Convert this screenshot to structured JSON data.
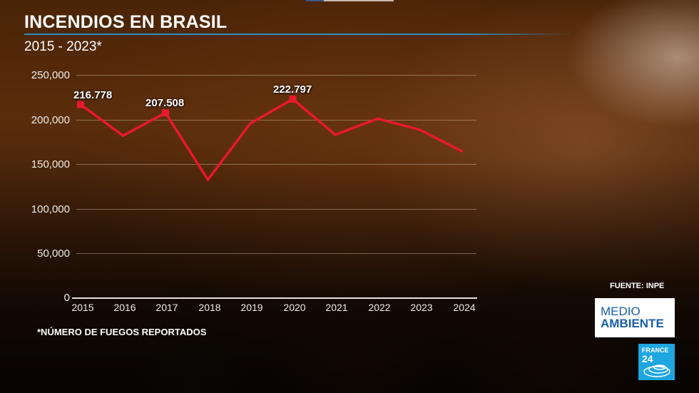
{
  "header": {
    "title": "INCENDIOS EN BRASIL",
    "subtitle": "2015 - 2023*"
  },
  "footer": {
    "note": "*NÚMERO DE FUEGOS REPORTADOS",
    "source": "FUENTE: INPE"
  },
  "branding": {
    "section_logo_line1": "MEDIO",
    "section_logo_line2": "AMBIENTE",
    "channel_logo_line1": "FRANCE",
    "channel_logo_line2": "24"
  },
  "colors": {
    "line": "#e8192c",
    "title_rule": "#2a8fc0",
    "channel_blue": "#1ea6e0",
    "section_blue": "#1a5fa8"
  },
  "chart_data": {
    "type": "line",
    "title": "INCENDIOS EN BRASIL",
    "subtitle": "2015 - 2023*",
    "xlabel": "",
    "ylabel": "",
    "categories": [
      "2015",
      "2016",
      "2017",
      "2018",
      "2019",
      "2020",
      "2021",
      "2022",
      "2023",
      "2024"
    ],
    "series": [
      {
        "name": "Número de fuegos reportados",
        "values": [
          216778,
          182000,
          207508,
          132600,
          195700,
          222797,
          183000,
          201000,
          188500,
          164000
        ]
      }
    ],
    "y_ticks": [
      "0",
      "50,000",
      "100,000",
      "150,000",
      "200,000",
      "250,000"
    ],
    "ylim": [
      0,
      250000
    ],
    "grid": true,
    "legend": "none",
    "annotations": [
      {
        "x": "2015",
        "label": "216.778"
      },
      {
        "x": "2017",
        "label": "207.508"
      },
      {
        "x": "2020",
        "label": "222.797"
      }
    ],
    "footnote": "*NÚMERO DE FUEGOS REPORTADOS",
    "source": "FUENTE: INPE"
  }
}
